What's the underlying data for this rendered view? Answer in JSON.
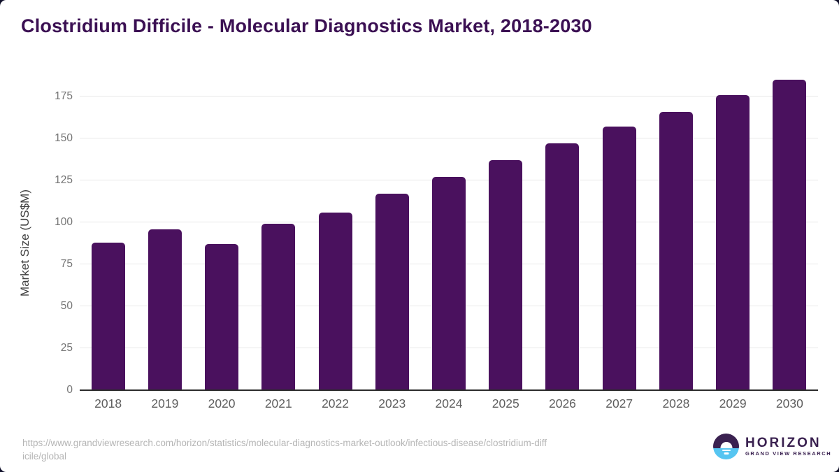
{
  "chart_data": {
    "type": "bar",
    "title": "Clostridium Difficile - Molecular Diagnostics Market, 2018-2030",
    "categories": [
      "2018",
      "2019",
      "2020",
      "2021",
      "2022",
      "2023",
      "2024",
      "2025",
      "2026",
      "2027",
      "2028",
      "2029",
      "2030"
    ],
    "values": [
      88,
      96,
      87,
      99,
      106,
      117,
      127,
      137,
      147,
      157,
      166,
      176,
      185
    ],
    "xlabel": "",
    "ylabel": "Market Size (US$M)",
    "yticks": [
      0,
      25,
      50,
      75,
      100,
      125,
      150,
      175
    ],
    "ylim": [
      0,
      190
    ],
    "grid": true,
    "legend": "none",
    "bar_color": "#4A115E"
  },
  "colors": {
    "bar": "#4A115E",
    "title_text": "#3B1053",
    "axis_label_text": "#3F3F3F",
    "ytick_text": "#757575",
    "xtick_text": "#5E5E5E",
    "gridline": "#E8E8E8",
    "axis_line": "#2B2B2B",
    "url_text": "#B5B5B5",
    "logo_purple": "#3A2150",
    "logo_blue": "#56C5F1"
  },
  "footer": {
    "source_url_line1": "https://www.grandviewresearch.com/horizon/statistics/molecular-diagnostics-market-outlook/infectious-disease/clostridium-diff",
    "source_url_line2": "icile/global",
    "logo": {
      "brand": "HORIZON",
      "sub_brand": "GRAND VIEW RESEARCH"
    }
  }
}
